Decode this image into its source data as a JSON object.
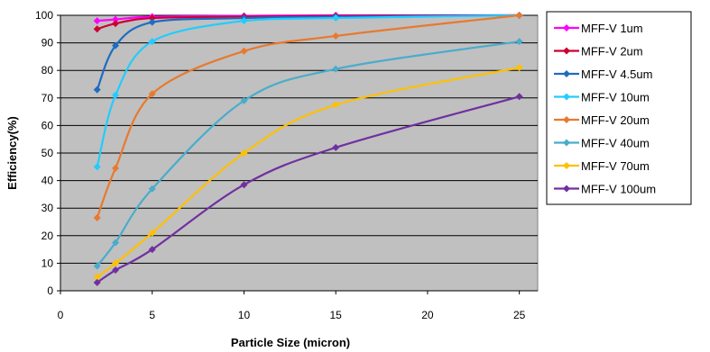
{
  "chart_data": {
    "type": "line",
    "title": "",
    "xlabel": "Particle Size (micron)",
    "ylabel": "Efficiency(%)",
    "xlim": [
      0,
      26
    ],
    "ylim": [
      0,
      100
    ],
    "x_ticks": [
      "0",
      "5",
      "10",
      "15",
      "20",
      "25"
    ],
    "y_ticks": [
      "0",
      "10",
      "20",
      "30",
      "40",
      "50",
      "60",
      "70",
      "80",
      "90",
      "100"
    ],
    "grid": "horizontal",
    "legend": "right",
    "x": [
      2,
      3,
      5,
      10,
      15,
      25
    ],
    "series": [
      {
        "name": "MFF-V 1um",
        "color": "#ff00ff",
        "values": [
          98,
          98.5,
          99.5,
          99.8,
          100,
          100
        ]
      },
      {
        "name": "MFF-V 2um",
        "color": "#cc0033",
        "values": [
          95,
          97,
          99,
          99.5,
          99.8,
          100
        ]
      },
      {
        "name": "MFF-V 4.5um",
        "color": "#1e6cc2",
        "values": [
          73,
          89,
          97.5,
          99,
          99.5,
          100
        ]
      },
      {
        "name": "MFF-V 10um",
        "color": "#22ccff",
        "values": [
          45,
          71,
          90.5,
          98,
          99,
          100
        ]
      },
      {
        "name": "MFF-V 20um",
        "color": "#e8792e",
        "values": [
          26.5,
          44.5,
          71.5,
          87,
          92.5,
          100
        ]
      },
      {
        "name": "MFF-V 40um",
        "color": "#4aaccc",
        "values": [
          9,
          17.5,
          37,
          69,
          80.5,
          90.5
        ]
      },
      {
        "name": "MFF-V 70um",
        "color": "#ffc000",
        "values": [
          5,
          10,
          21,
          50,
          67.5,
          81
        ]
      },
      {
        "name": "MFF-V 100um",
        "color": "#7030a0",
        "values": [
          3,
          7.5,
          15,
          38.5,
          52,
          70.5
        ]
      }
    ]
  }
}
